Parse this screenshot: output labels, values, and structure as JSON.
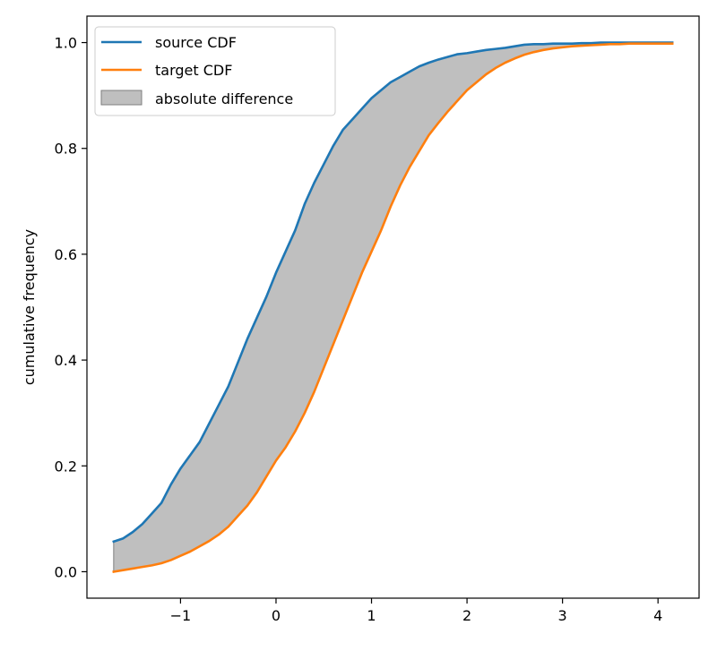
{
  "chart_data": {
    "type": "line",
    "title": "",
    "xlabel": "",
    "ylabel": "cumulative frequency",
    "xlim": [
      -1.98,
      4.43
    ],
    "ylim": [
      -0.05,
      1.05
    ],
    "xticks": [
      -1,
      0,
      1,
      2,
      3,
      4
    ],
    "xtick_labels": [
      "−1",
      "0",
      "1",
      "2",
      "3",
      "4"
    ],
    "yticks": [
      0.0,
      0.2,
      0.4,
      0.6,
      0.8,
      1.0
    ],
    "ytick_labels": [
      "0.0",
      "0.2",
      "0.4",
      "0.6",
      "0.8",
      "1.0"
    ],
    "grid": false,
    "legend_position": "top-left",
    "legend": {
      "source": "source CDF",
      "target": "target CDF",
      "fill": "absolute difference"
    },
    "colors": {
      "source": "#1f77b4",
      "target": "#ff7f0e",
      "fill": "#bfbfbf",
      "fill_edge": "#7f7f7f"
    },
    "x": [
      -1.7,
      -1.6,
      -1.5,
      -1.4,
      -1.3,
      -1.2,
      -1.1,
      -1.0,
      -0.9,
      -0.8,
      -0.7,
      -0.6,
      -0.5,
      -0.4,
      -0.3,
      -0.2,
      -0.1,
      0.0,
      0.1,
      0.2,
      0.3,
      0.4,
      0.5,
      0.6,
      0.7,
      0.8,
      0.9,
      1.0,
      1.1,
      1.2,
      1.3,
      1.4,
      1.5,
      1.6,
      1.7,
      1.8,
      1.9,
      2.0,
      2.1,
      2.2,
      2.3,
      2.4,
      2.5,
      2.6,
      2.7,
      2.8,
      2.9,
      3.0,
      3.1,
      3.2,
      3.3,
      3.4,
      3.5,
      3.6,
      3.7,
      3.8,
      3.9,
      4.0,
      4.15
    ],
    "series": [
      {
        "name": "source CDF",
        "values": [
          0.057,
          0.063,
          0.075,
          0.09,
          0.11,
          0.13,
          0.165,
          0.195,
          0.22,
          0.245,
          0.28,
          0.315,
          0.35,
          0.395,
          0.44,
          0.48,
          0.52,
          0.565,
          0.605,
          0.645,
          0.695,
          0.735,
          0.77,
          0.805,
          0.835,
          0.855,
          0.875,
          0.895,
          0.91,
          0.925,
          0.935,
          0.945,
          0.955,
          0.962,
          0.968,
          0.973,
          0.978,
          0.98,
          0.983,
          0.986,
          0.988,
          0.99,
          0.993,
          0.996,
          0.997,
          0.997,
          0.998,
          0.998,
          0.998,
          0.999,
          0.999,
          1.0,
          1.0,
          1.0,
          1.0,
          1.0,
          1.0,
          1.0,
          1.0
        ]
      },
      {
        "name": "target CDF",
        "values": [
          0.0,
          0.003,
          0.006,
          0.009,
          0.012,
          0.016,
          0.022,
          0.03,
          0.038,
          0.048,
          0.058,
          0.07,
          0.085,
          0.105,
          0.125,
          0.15,
          0.18,
          0.21,
          0.235,
          0.265,
          0.3,
          0.34,
          0.385,
          0.43,
          0.475,
          0.52,
          0.565,
          0.605,
          0.645,
          0.69,
          0.73,
          0.765,
          0.795,
          0.825,
          0.848,
          0.87,
          0.89,
          0.91,
          0.925,
          0.94,
          0.952,
          0.962,
          0.97,
          0.977,
          0.982,
          0.986,
          0.989,
          0.991,
          0.993,
          0.994,
          0.995,
          0.996,
          0.997,
          0.997,
          0.998,
          0.998,
          0.998,
          0.998,
          0.998
        ]
      }
    ]
  }
}
